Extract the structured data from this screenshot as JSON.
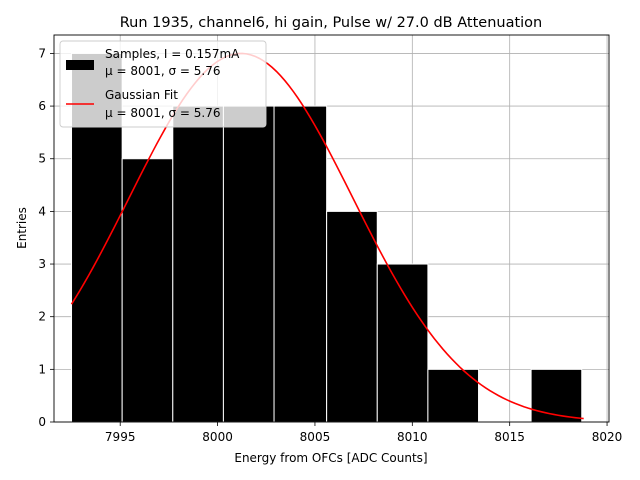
{
  "chart_data": {
    "type": "bar",
    "title": "Run 1935, channel6, hi gain, Pulse w/ 27.0 dB Attenuation",
    "xlabel": "Energy from OFCs [ADC Counts]",
    "ylabel": "Entries",
    "xlim": [
      7991.6,
      8020.1
    ],
    "ylim": [
      0,
      7.35
    ],
    "grid": true,
    "x_ticks": [
      7995,
      8000,
      8005,
      8010,
      8015,
      8020
    ],
    "y_ticks": [
      0,
      1,
      2,
      3,
      4,
      5,
      6,
      7
    ],
    "histogram": {
      "name": "Samples, I = 0.157mA",
      "stats": "μ = 8001, σ = 5.76",
      "color": "#000000",
      "bin_edges": [
        7992.5,
        7995.1,
        7997.7,
        8000.3,
        8002.9,
        8005.6,
        8008.2,
        8010.8,
        8013.4,
        8016.1,
        8018.7
      ],
      "counts": [
        7,
        5,
        6,
        6,
        6,
        4,
        3,
        1,
        0,
        1
      ]
    },
    "fit": {
      "name": "Gaussian Fit",
      "stats": "μ = 8001, σ = 5.76",
      "color": "#ff0000",
      "amplitude": 7.0,
      "mu": 8001.2,
      "sigma": 5.76,
      "x_range": [
        7992.5,
        8018.8
      ]
    },
    "legend": {
      "placement": "top-left",
      "entries": [
        {
          "label": "Samples, I = 0.157mA",
          "stats": "μ = 8001, σ = 5.76",
          "marker": "patch"
        },
        {
          "label": "Gaussian Fit",
          "stats": "μ = 8001, σ = 5.76",
          "marker": "line"
        }
      ]
    }
  }
}
